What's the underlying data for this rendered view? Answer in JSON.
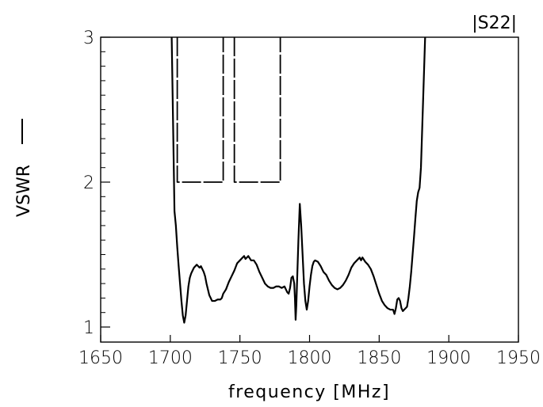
{
  "chart_data": {
    "type": "line",
    "title": "|S22|",
    "xlabel": "frequency [MHz]",
    "ylabel": "VSWR",
    "xlim": [
      1650,
      1950
    ],
    "ylim": [
      0.9,
      3
    ],
    "x_ticks": [
      1650,
      1700,
      1750,
      1800,
      1850,
      1900,
      1950
    ],
    "y_ticks_labeled": [
      1,
      2,
      3
    ],
    "y_minor_ticks": [
      1.1,
      1.2,
      1.3,
      1.4,
      1.5,
      1.6,
      1.7,
      1.8,
      1.9,
      2.1,
      2.2,
      2.3,
      2.4,
      2.5,
      2.6,
      2.7,
      2.8,
      2.9
    ],
    "grid": false,
    "series": [
      {
        "name": "VSWR",
        "style": "solid",
        "color": "#000000",
        "points": [
          [
            1701,
            3.0
          ],
          [
            1702,
            2.4
          ],
          [
            1703,
            1.8
          ],
          [
            1704,
            1.7
          ],
          [
            1705,
            1.55
          ],
          [
            1706,
            1.42
          ],
          [
            1707,
            1.3
          ],
          [
            1708,
            1.18
          ],
          [
            1709,
            1.08
          ],
          [
            1710,
            1.03
          ],
          [
            1711,
            1.08
          ],
          [
            1712,
            1.18
          ],
          [
            1713,
            1.28
          ],
          [
            1714,
            1.34
          ],
          [
            1715,
            1.37
          ],
          [
            1716,
            1.39
          ],
          [
            1717,
            1.41
          ],
          [
            1718,
            1.42
          ],
          [
            1719,
            1.43
          ],
          [
            1720,
            1.42
          ],
          [
            1721,
            1.41
          ],
          [
            1722,
            1.42
          ],
          [
            1723,
            1.4
          ],
          [
            1724,
            1.38
          ],
          [
            1725,
            1.35
          ],
          [
            1726,
            1.3
          ],
          [
            1727,
            1.26
          ],
          [
            1728,
            1.22
          ],
          [
            1729,
            1.2
          ],
          [
            1730,
            1.18
          ],
          [
            1732,
            1.18
          ],
          [
            1734,
            1.19
          ],
          [
            1736,
            1.19
          ],
          [
            1737,
            1.2
          ],
          [
            1738,
            1.23
          ],
          [
            1740,
            1.26
          ],
          [
            1742,
            1.31
          ],
          [
            1744,
            1.35
          ],
          [
            1746,
            1.39
          ],
          [
            1748,
            1.44
          ],
          [
            1750,
            1.46
          ],
          [
            1752,
            1.48
          ],
          [
            1753,
            1.49
          ],
          [
            1754,
            1.47
          ],
          [
            1756,
            1.49
          ],
          [
            1758,
            1.46
          ],
          [
            1760,
            1.46
          ],
          [
            1762,
            1.43
          ],
          [
            1764,
            1.38
          ],
          [
            1766,
            1.34
          ],
          [
            1768,
            1.3
          ],
          [
            1770,
            1.28
          ],
          [
            1772,
            1.27
          ],
          [
            1774,
            1.27
          ],
          [
            1776,
            1.28
          ],
          [
            1778,
            1.28
          ],
          [
            1780,
            1.27
          ],
          [
            1782,
            1.28
          ],
          [
            1783,
            1.26
          ],
          [
            1784,
            1.24
          ],
          [
            1785,
            1.23
          ],
          [
            1786,
            1.27
          ],
          [
            1787,
            1.34
          ],
          [
            1788,
            1.35
          ],
          [
            1789,
            1.3
          ],
          [
            1789.5,
            1.2
          ],
          [
            1790,
            1.05
          ],
          [
            1790.5,
            1.15
          ],
          [
            1791,
            1.3
          ],
          [
            1792,
            1.6
          ],
          [
            1793,
            1.85
          ],
          [
            1794,
            1.7
          ],
          [
            1795,
            1.5
          ],
          [
            1796,
            1.3
          ],
          [
            1797,
            1.18
          ],
          [
            1798,
            1.12
          ],
          [
            1799,
            1.18
          ],
          [
            1800,
            1.28
          ],
          [
            1801,
            1.36
          ],
          [
            1802,
            1.42
          ],
          [
            1803,
            1.45
          ],
          [
            1804,
            1.46
          ],
          [
            1806,
            1.45
          ],
          [
            1808,
            1.42
          ],
          [
            1810,
            1.38
          ],
          [
            1812,
            1.36
          ],
          [
            1814,
            1.32
          ],
          [
            1816,
            1.29
          ],
          [
            1818,
            1.27
          ],
          [
            1820,
            1.26
          ],
          [
            1822,
            1.27
          ],
          [
            1824,
            1.29
          ],
          [
            1826,
            1.32
          ],
          [
            1828,
            1.36
          ],
          [
            1830,
            1.41
          ],
          [
            1832,
            1.44
          ],
          [
            1834,
            1.46
          ],
          [
            1836,
            1.48
          ],
          [
            1837,
            1.46
          ],
          [
            1838,
            1.48
          ],
          [
            1840,
            1.45
          ],
          [
            1842,
            1.43
          ],
          [
            1844,
            1.4
          ],
          [
            1846,
            1.35
          ],
          [
            1848,
            1.29
          ],
          [
            1850,
            1.23
          ],
          [
            1852,
            1.18
          ],
          [
            1854,
            1.15
          ],
          [
            1856,
            1.13
          ],
          [
            1858,
            1.12
          ],
          [
            1860,
            1.12
          ],
          [
            1861,
            1.09
          ],
          [
            1862,
            1.13
          ],
          [
            1863,
            1.19
          ],
          [
            1864,
            1.2
          ],
          [
            1865,
            1.18
          ],
          [
            1866,
            1.13
          ],
          [
            1867,
            1.11
          ],
          [
            1868,
            1.12
          ],
          [
            1869,
            1.13
          ],
          [
            1870,
            1.14
          ],
          [
            1871,
            1.2
          ],
          [
            1872,
            1.28
          ],
          [
            1873,
            1.38
          ],
          [
            1874,
            1.5
          ],
          [
            1875,
            1.62
          ],
          [
            1876,
            1.75
          ],
          [
            1877,
            1.87
          ],
          [
            1878,
            1.93
          ],
          [
            1879,
            1.96
          ],
          [
            1880,
            2.1
          ],
          [
            1881,
            2.4
          ],
          [
            1882,
            2.7
          ],
          [
            1883,
            3.0
          ]
        ]
      },
      {
        "name": "|S22|",
        "style": "dashed",
        "color": "#000000",
        "segments": [
          [
            [
              1705,
              3.0
            ],
            [
              1705,
              2.0
            ],
            [
              1738,
              2.0
            ],
            [
              1738,
              3.0
            ]
          ],
          [
            [
              1746,
              3.0
            ],
            [
              1746,
              2.0
            ],
            [
              1779,
              2.0
            ],
            [
              1779,
              3.0
            ]
          ]
        ]
      }
    ]
  }
}
